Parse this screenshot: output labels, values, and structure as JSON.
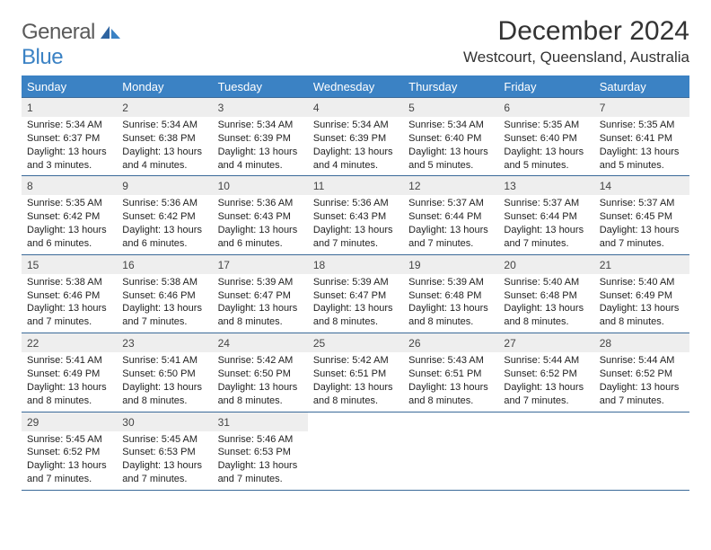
{
  "logo": {
    "text_general": "General",
    "text_blue": "Blue"
  },
  "title": "December 2024",
  "location": "Westcourt, Queensland, Australia",
  "colors": {
    "header_bg": "#3b82c4",
    "header_text": "#ffffff",
    "daynum_bg": "#eeeeee",
    "border": "#3b6a99",
    "logo_general": "#5a5a5a",
    "logo_blue": "#3b82c4",
    "body_text": "#222222",
    "page_bg": "#ffffff"
  },
  "day_headers": [
    "Sunday",
    "Monday",
    "Tuesday",
    "Wednesday",
    "Thursday",
    "Friday",
    "Saturday"
  ],
  "weeks": [
    [
      {
        "n": "1",
        "sunrise": "5:34 AM",
        "sunset": "6:37 PM",
        "day_h": "13",
        "day_m": "3"
      },
      {
        "n": "2",
        "sunrise": "5:34 AM",
        "sunset": "6:38 PM",
        "day_h": "13",
        "day_m": "4"
      },
      {
        "n": "3",
        "sunrise": "5:34 AM",
        "sunset": "6:39 PM",
        "day_h": "13",
        "day_m": "4"
      },
      {
        "n": "4",
        "sunrise": "5:34 AM",
        "sunset": "6:39 PM",
        "day_h": "13",
        "day_m": "4"
      },
      {
        "n": "5",
        "sunrise": "5:34 AM",
        "sunset": "6:40 PM",
        "day_h": "13",
        "day_m": "5"
      },
      {
        "n": "6",
        "sunrise": "5:35 AM",
        "sunset": "6:40 PM",
        "day_h": "13",
        "day_m": "5"
      },
      {
        "n": "7",
        "sunrise": "5:35 AM",
        "sunset": "6:41 PM",
        "day_h": "13",
        "day_m": "5"
      }
    ],
    [
      {
        "n": "8",
        "sunrise": "5:35 AM",
        "sunset": "6:42 PM",
        "day_h": "13",
        "day_m": "6"
      },
      {
        "n": "9",
        "sunrise": "5:36 AM",
        "sunset": "6:42 PM",
        "day_h": "13",
        "day_m": "6"
      },
      {
        "n": "10",
        "sunrise": "5:36 AM",
        "sunset": "6:43 PM",
        "day_h": "13",
        "day_m": "6"
      },
      {
        "n": "11",
        "sunrise": "5:36 AM",
        "sunset": "6:43 PM",
        "day_h": "13",
        "day_m": "7"
      },
      {
        "n": "12",
        "sunrise": "5:37 AM",
        "sunset": "6:44 PM",
        "day_h": "13",
        "day_m": "7"
      },
      {
        "n": "13",
        "sunrise": "5:37 AM",
        "sunset": "6:44 PM",
        "day_h": "13",
        "day_m": "7"
      },
      {
        "n": "14",
        "sunrise": "5:37 AM",
        "sunset": "6:45 PM",
        "day_h": "13",
        "day_m": "7"
      }
    ],
    [
      {
        "n": "15",
        "sunrise": "5:38 AM",
        "sunset": "6:46 PM",
        "day_h": "13",
        "day_m": "7"
      },
      {
        "n": "16",
        "sunrise": "5:38 AM",
        "sunset": "6:46 PM",
        "day_h": "13",
        "day_m": "7"
      },
      {
        "n": "17",
        "sunrise": "5:39 AM",
        "sunset": "6:47 PM",
        "day_h": "13",
        "day_m": "8"
      },
      {
        "n": "18",
        "sunrise": "5:39 AM",
        "sunset": "6:47 PM",
        "day_h": "13",
        "day_m": "8"
      },
      {
        "n": "19",
        "sunrise": "5:39 AM",
        "sunset": "6:48 PM",
        "day_h": "13",
        "day_m": "8"
      },
      {
        "n": "20",
        "sunrise": "5:40 AM",
        "sunset": "6:48 PM",
        "day_h": "13",
        "day_m": "8"
      },
      {
        "n": "21",
        "sunrise": "5:40 AM",
        "sunset": "6:49 PM",
        "day_h": "13",
        "day_m": "8"
      }
    ],
    [
      {
        "n": "22",
        "sunrise": "5:41 AM",
        "sunset": "6:49 PM",
        "day_h": "13",
        "day_m": "8"
      },
      {
        "n": "23",
        "sunrise": "5:41 AM",
        "sunset": "6:50 PM",
        "day_h": "13",
        "day_m": "8"
      },
      {
        "n": "24",
        "sunrise": "5:42 AM",
        "sunset": "6:50 PM",
        "day_h": "13",
        "day_m": "8"
      },
      {
        "n": "25",
        "sunrise": "5:42 AM",
        "sunset": "6:51 PM",
        "day_h": "13",
        "day_m": "8"
      },
      {
        "n": "26",
        "sunrise": "5:43 AM",
        "sunset": "6:51 PM",
        "day_h": "13",
        "day_m": "8"
      },
      {
        "n": "27",
        "sunrise": "5:44 AM",
        "sunset": "6:52 PM",
        "day_h": "13",
        "day_m": "7"
      },
      {
        "n": "28",
        "sunrise": "5:44 AM",
        "sunset": "6:52 PM",
        "day_h": "13",
        "day_m": "7"
      }
    ],
    [
      {
        "n": "29",
        "sunrise": "5:45 AM",
        "sunset": "6:52 PM",
        "day_h": "13",
        "day_m": "7"
      },
      {
        "n": "30",
        "sunrise": "5:45 AM",
        "sunset": "6:53 PM",
        "day_h": "13",
        "day_m": "7"
      },
      {
        "n": "31",
        "sunrise": "5:46 AM",
        "sunset": "6:53 PM",
        "day_h": "13",
        "day_m": "7"
      },
      null,
      null,
      null,
      null
    ]
  ],
  "labels": {
    "sunrise_prefix": "Sunrise: ",
    "sunset_prefix": "Sunset: ",
    "daylight_prefix": "Daylight: ",
    "hours_word": " hours",
    "and_word": "and ",
    "minutes_word": " minutes."
  },
  "typography": {
    "title_fontsize": 30,
    "location_fontsize": 17,
    "dayhead_fontsize": 13,
    "daynum_fontsize": 12,
    "info_fontsize": 11,
    "logo_fontsize": 24
  }
}
